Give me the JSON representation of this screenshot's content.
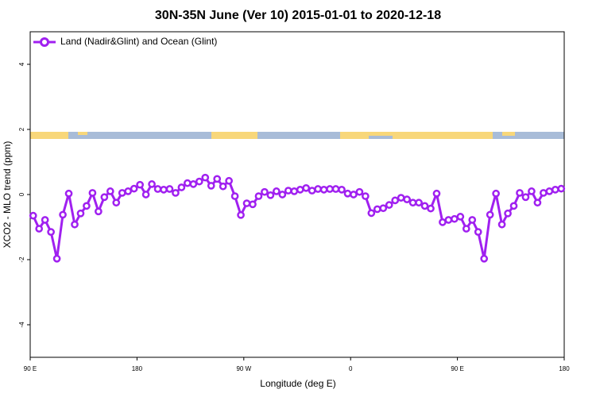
{
  "chart_data": {
    "type": "line",
    "title": "30N-35N June (Ver 10)   2015-01-01 to 2020-12-18",
    "x_label": "Longitude (deg E)",
    "y_label": "XCO2 - MLO trend (ppm)",
    "xlim": [
      90,
      540
    ],
    "xticks": [
      {
        "value": 90,
        "label": "90 E"
      },
      {
        "value": 180,
        "label": "180"
      },
      {
        "value": 270,
        "label": "90 W"
      },
      {
        "value": 360,
        "label": "0"
      },
      {
        "value": 450,
        "label": "90 E"
      },
      {
        "value": 540,
        "label": "180"
      }
    ],
    "ylim": [
      -5,
      5
    ],
    "yticks": [
      -4,
      -2,
      0,
      2,
      4
    ],
    "grid": false,
    "legend_position": "top-left",
    "x": [
      92.5,
      97.5,
      102.5,
      107.5,
      112.5,
      117.5,
      122.5,
      127.5,
      132.5,
      137.5,
      142.5,
      147.5,
      152.5,
      157.5,
      162.5,
      167.5,
      172.5,
      177.5,
      182.5,
      187.5,
      192.5,
      197.5,
      202.5,
      207.5,
      212.5,
      217.5,
      222.5,
      227.5,
      232.5,
      237.5,
      242.5,
      247.5,
      252.5,
      257.5,
      262.5,
      267.5,
      272.5,
      277.5,
      282.5,
      287.5,
      292.5,
      297.5,
      302.5,
      307.5,
      312.5,
      317.5,
      322.5,
      327.5,
      332.5,
      337.5,
      342.5,
      347.5,
      352.5,
      357.5,
      362.5,
      367.5,
      372.5,
      377.5,
      382.5,
      387.5,
      392.5,
      397.5,
      402.5,
      407.5,
      412.5,
      417.5,
      422.5,
      427.5,
      432.5,
      437.5,
      442.5,
      447.5,
      452.5,
      457.5,
      462.5,
      467.5,
      472.5,
      477.5,
      482.5,
      487.5,
      492.5,
      497.5,
      502.5,
      507.5,
      512.5,
      517.5,
      522.5,
      527.5,
      532.5,
      537.5
    ],
    "series": [
      {
        "name": "Land (Nadir&Glint) and Ocean (Glint)",
        "color": "#a020f0",
        "values": [
          -0.65,
          -1.05,
          -0.78,
          -1.15,
          -1.97,
          -0.62,
          0.03,
          -0.92,
          -0.58,
          -0.35,
          0.05,
          -0.52,
          -0.08,
          0.1,
          -0.25,
          0.05,
          0.1,
          0.18,
          0.3,
          0.0,
          0.32,
          0.17,
          0.15,
          0.17,
          0.05,
          0.22,
          0.35,
          0.32,
          0.4,
          0.52,
          0.27,
          0.48,
          0.25,
          0.42,
          -0.05,
          -0.63,
          -0.27,
          -0.3,
          -0.05,
          0.08,
          -0.02,
          0.1,
          0.0,
          0.12,
          0.1,
          0.15,
          0.2,
          0.12,
          0.17,
          0.15,
          0.17,
          0.17,
          0.15,
          0.03,
          0.0,
          0.08,
          -0.05,
          -0.57,
          -0.45,
          -0.42,
          -0.32,
          -0.18,
          -0.1,
          -0.15,
          -0.25,
          -0.25,
          -0.35,
          -0.43,
          0.03,
          -0.85,
          -0.78,
          -0.75,
          -0.68,
          -1.05,
          -0.78,
          -1.15,
          -1.97,
          -0.62,
          0.03,
          -0.92,
          -0.58,
          -0.35,
          0.05,
          -0.08,
          0.1,
          -0.25,
          0.05,
          0.1,
          0.15,
          0.18
        ]
      }
    ]
  }
}
